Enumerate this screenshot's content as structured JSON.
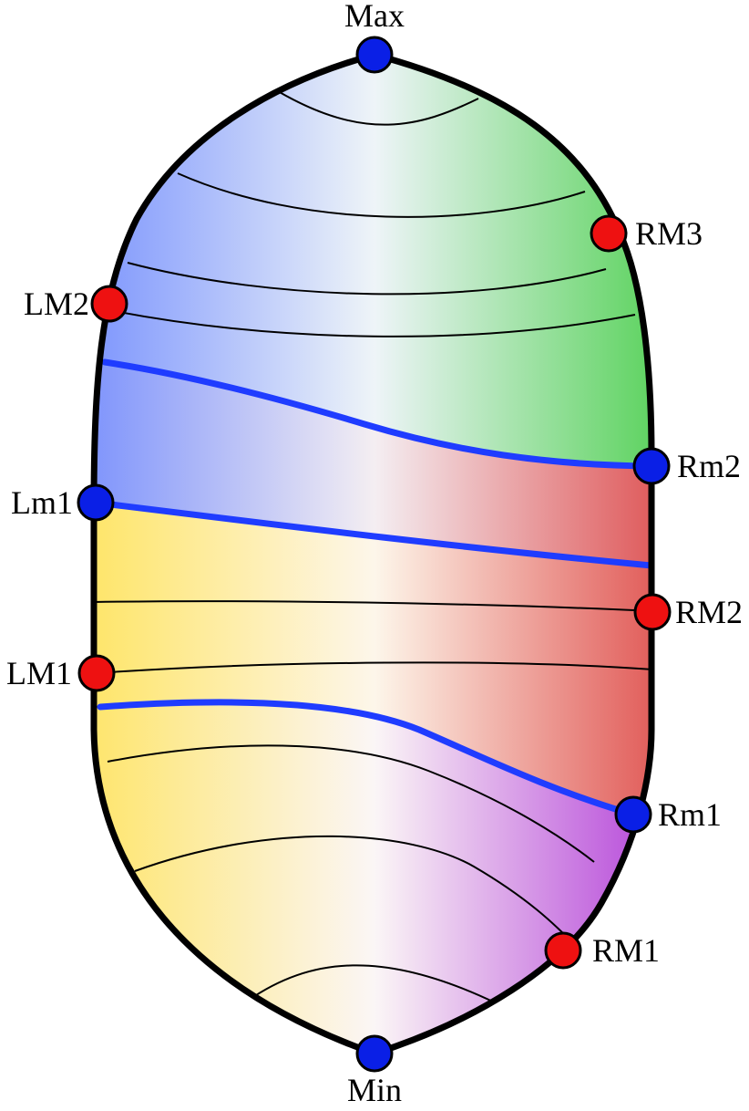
{
  "title": "",
  "colors": {
    "blue_region": "#5a78ff",
    "green_region": "#2ec82e",
    "red_region": "#d82a2a",
    "yellow_region": "#ffe040",
    "purple_region": "#a010d0",
    "level_line": "#1f3cff",
    "min_point": "#0a1fe6",
    "saddle_point": "#ee1111",
    "outline": "#000000"
  },
  "critical_points": [
    {
      "id": "max",
      "label": "Max",
      "kind": "extremum",
      "color": "blue"
    },
    {
      "id": "rm3",
      "label": "RM3",
      "kind": "saddle",
      "color": "red"
    },
    {
      "id": "lm2",
      "label": "LM2",
      "kind": "saddle",
      "color": "red"
    },
    {
      "id": "rm2-small",
      "label": "Rm2",
      "kind": "extremum",
      "color": "blue"
    },
    {
      "id": "lm1-small",
      "label": "Lm1",
      "kind": "extremum",
      "color": "blue"
    },
    {
      "id": "rm2",
      "label": "RM2",
      "kind": "saddle",
      "color": "red"
    },
    {
      "id": "lm1",
      "label": "LM1",
      "kind": "saddle",
      "color": "red"
    },
    {
      "id": "rm1-small",
      "label": "Rm1",
      "kind": "extremum",
      "color": "blue"
    },
    {
      "id": "rm1",
      "label": "RM1",
      "kind": "saddle",
      "color": "red"
    },
    {
      "id": "min",
      "label": "Min",
      "kind": "extremum",
      "color": "blue"
    }
  ]
}
